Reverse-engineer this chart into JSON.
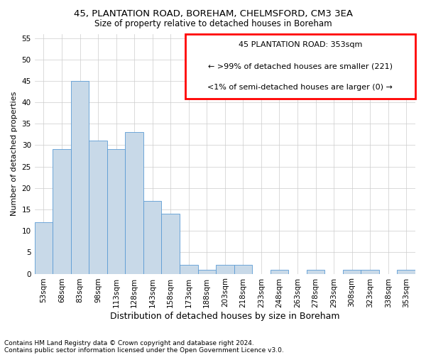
{
  "title1": "45, PLANTATION ROAD, BOREHAM, CHELMSFORD, CM3 3EA",
  "title2": "Size of property relative to detached houses in Boreham",
  "xlabel": "Distribution of detached houses by size in Boreham",
  "ylabel": "Number of detached properties",
  "footnote1": "Contains HM Land Registry data © Crown copyright and database right 2024.",
  "footnote2": "Contains public sector information licensed under the Open Government Licence v3.0.",
  "bins": [
    "53sqm",
    "68sqm",
    "83sqm",
    "98sqm",
    "113sqm",
    "128sqm",
    "143sqm",
    "158sqm",
    "173sqm",
    "188sqm",
    "203sqm",
    "218sqm",
    "233sqm",
    "248sqm",
    "263sqm",
    "278sqm",
    "293sqm",
    "308sqm",
    "323sqm",
    "338sqm",
    "353sqm"
  ],
  "values": [
    12,
    29,
    45,
    31,
    29,
    33,
    17,
    14,
    2,
    1,
    2,
    2,
    0,
    1,
    0,
    1,
    0,
    1,
    1,
    0,
    1
  ],
  "bar_color": "#c8d9e8",
  "bar_edge_color": "#5b9bd5",
  "annotation_title": "45 PLANTATION ROAD: 353sqm",
  "annotation_line2": "← >99% of detached houses are smaller (221)",
  "annotation_line3": "<1% of semi-detached houses are larger (0) →",
  "annotation_box_color": "#ff0000",
  "ylim": [
    0,
    56
  ],
  "yticks": [
    0,
    5,
    10,
    15,
    20,
    25,
    30,
    35,
    40,
    45,
    50,
    55
  ],
  "background_color": "#ffffff",
  "grid_color": "#cccccc",
  "title1_fontsize": 9.5,
  "title2_fontsize": 8.5,
  "ylabel_fontsize": 8,
  "xlabel_fontsize": 9,
  "tick_fontsize": 7.5,
  "annot_fontsize": 8,
  "footnote_fontsize": 6.5
}
